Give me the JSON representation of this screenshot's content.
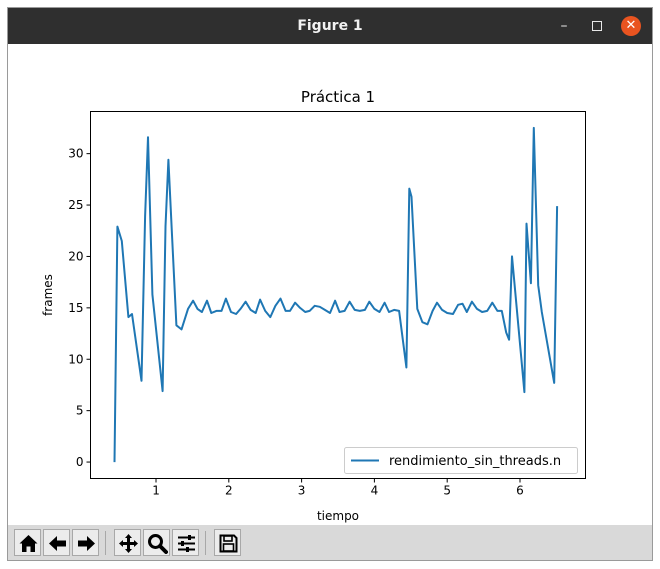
{
  "window": {
    "title": "Figure 1",
    "controls": {
      "minimize_icon": "minimize-icon",
      "maximize_icon": "maximize-icon",
      "close_icon": "close-icon"
    }
  },
  "toolbar": {
    "buttons": [
      {
        "name": "home-button",
        "icon": "home-icon"
      },
      {
        "name": "back-button",
        "icon": "arrow-left-icon"
      },
      {
        "name": "forward-button",
        "icon": "arrow-right-icon"
      },
      {
        "name": "pan-button",
        "icon": "move-icon"
      },
      {
        "name": "zoom-button",
        "icon": "magnifier-icon"
      },
      {
        "name": "configure-subplots-button",
        "icon": "sliders-icon"
      },
      {
        "name": "save-button",
        "icon": "floppy-disk-icon"
      }
    ]
  },
  "chart_data": {
    "type": "line",
    "title": "Práctica 1",
    "xlabel": "tiempo",
    "ylabel": "frames",
    "xlim": [
      0.1,
      6.9
    ],
    "ylim": [
      -1.6,
      34.1
    ],
    "xticks": [
      1,
      2,
      3,
      4,
      5,
      6
    ],
    "yticks": [
      0,
      5,
      10,
      15,
      20,
      25,
      30
    ],
    "grid": false,
    "legend": "lower-right",
    "series": [
      {
        "name": "rendimiento_sin_threads.n",
        "color": "#1f77b4",
        "x": [
          0.43,
          0.47,
          0.53,
          0.62,
          0.67,
          0.8,
          0.85,
          0.89,
          0.95,
          1.09,
          1.13,
          1.17,
          1.22,
          1.28,
          1.35,
          1.44,
          1.51,
          1.57,
          1.63,
          1.7,
          1.76,
          1.83,
          1.9,
          1.96,
          2.03,
          2.1,
          2.16,
          2.23,
          2.3,
          2.37,
          2.43,
          2.5,
          2.57,
          2.64,
          2.71,
          2.78,
          2.84,
          2.91,
          2.98,
          3.05,
          3.11,
          3.18,
          3.25,
          3.32,
          3.39,
          3.46,
          3.52,
          3.59,
          3.66,
          3.73,
          3.8,
          3.87,
          3.93,
          4.0,
          4.07,
          4.14,
          4.2,
          4.27,
          4.34,
          4.44,
          4.48,
          4.51,
          4.59,
          4.66,
          4.73,
          4.8,
          4.86,
          4.93,
          5.0,
          5.08,
          5.15,
          5.21,
          5.27,
          5.34,
          5.41,
          5.48,
          5.55,
          5.62,
          5.69,
          5.75,
          5.81,
          5.85,
          5.89,
          6.06,
          6.09,
          6.15,
          6.19,
          6.25,
          6.3,
          6.47,
          6.51
        ],
        "y": [
          0,
          22.9,
          21.5,
          14.1,
          14.4,
          7.9,
          23.9,
          31.6,
          16.3,
          6.9,
          22.9,
          29.4,
          22.1,
          13.3,
          12.9,
          14.9,
          15.7,
          14.9,
          14.6,
          15.7,
          14.5,
          14.7,
          14.7,
          15.9,
          14.6,
          14.4,
          14.9,
          15.6,
          14.8,
          14.5,
          15.8,
          14.7,
          14.1,
          15.2,
          15.9,
          14.7,
          14.7,
          15.5,
          15.0,
          14.6,
          14.7,
          15.2,
          15.1,
          14.8,
          14.5,
          15.7,
          14.6,
          14.7,
          15.6,
          14.8,
          14.7,
          14.8,
          15.6,
          14.9,
          14.6,
          15.5,
          14.6,
          14.8,
          14.7,
          9.2,
          26.6,
          25.8,
          14.9,
          13.6,
          13.4,
          14.7,
          15.5,
          14.8,
          14.5,
          14.4,
          15.3,
          15.4,
          14.6,
          15.6,
          14.9,
          14.6,
          14.7,
          15.5,
          14.7,
          14.7,
          12.6,
          11.9,
          20.0,
          6.8,
          23.2,
          17.4,
          32.5,
          17.2,
          14.6,
          7.7,
          24.9
        ]
      }
    ]
  }
}
